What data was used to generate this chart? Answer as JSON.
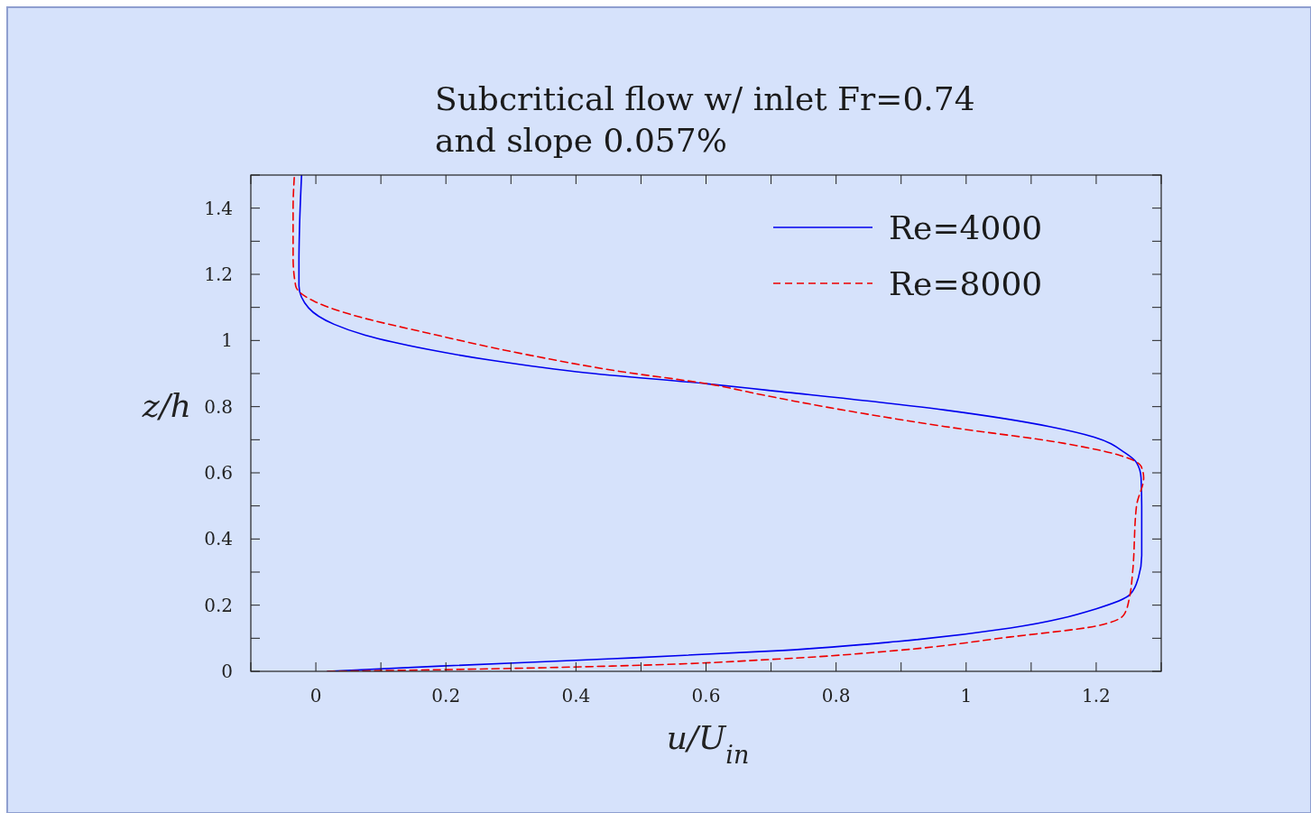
{
  "chart_data": {
    "type": "line",
    "title": "Subcritical flow w/ inlet Fr=0.74\nand slope 0.057%",
    "xlabel": "u/U$_{in}$",
    "ylabel": "z/h",
    "xlim": [
      -0.1,
      1.3
    ],
    "ylim": [
      0,
      1.5
    ],
    "xticks": [
      {
        "value": -0.1,
        "label": null
      },
      0,
      {
        "value": 0.1,
        "label": null
      },
      0.2,
      {
        "value": 0.3,
        "label": null
      },
      0.4,
      {
        "value": 0.5,
        "label": null
      },
      0.6,
      {
        "value": 0.7,
        "label": null
      },
      0.8,
      {
        "value": 0.9,
        "label": null
      },
      1,
      {
        "value": 1.1,
        "label": null
      },
      1.2,
      {
        "value": 1.3,
        "label": null
      }
    ],
    "yticks": [
      0,
      {
        "value": 0.1,
        "label": null
      },
      0.2,
      {
        "value": 0.3,
        "label": null
      },
      0.4,
      {
        "value": 0.5,
        "label": null
      },
      0.6,
      {
        "value": 0.7,
        "label": null
      },
      0.8,
      {
        "value": 0.9,
        "label": null
      },
      1,
      {
        "value": 1.1,
        "label": null
      },
      1.2,
      {
        "value": 1.3,
        "label": null
      },
      1.4,
      {
        "value": 1.5,
        "label": null
      }
    ],
    "grid": false,
    "legend": "top right",
    "marker": "none",
    "series": [
      {
        "name": "Re=4000",
        "color": "#0000ee",
        "line_style": "solid",
        "x": [
          0.018,
          0.193,
          0.456,
          0.718,
          0.893,
          1.068,
          1.2,
          1.252,
          1.265,
          1.27,
          1.27,
          1.269,
          1.262,
          1.244,
          1.197,
          1.128,
          0.967,
          0.693,
          0.602,
          0.417,
          0.27,
          0.173,
          0.076,
          0.028,
          -0.011,
          -0.026,
          -0.026,
          -0.025,
          -0.022
        ],
        "values": [
          0,
          0.016,
          0.038,
          0.063,
          0.09,
          0.131,
          0.189,
          0.232,
          0.284,
          0.35,
          0.5,
          0.585,
          0.631,
          0.661,
          0.708,
          0.74,
          0.79,
          0.85,
          0.869,
          0.902,
          0.94,
          0.973,
          1.016,
          1.049,
          1.098,
          1.165,
          1.24,
          1.35,
          1.5
        ]
      },
      {
        "name": "Re=8000",
        "color": "#ee0000",
        "line_style": "dashed",
        "x": [
          0.018,
          0.193,
          0.456,
          0.718,
          0.893,
          1.068,
          1.2,
          1.243,
          1.252,
          1.256,
          1.262,
          1.273,
          1.269,
          1.244,
          1.151,
          0.967,
          0.735,
          0.693,
          0.602,
          0.466,
          0.32,
          0.173,
          0.053,
          -0.001,
          -0.031,
          -0.035,
          -0.035,
          -0.033
        ],
        "values": [
          0,
          0.005,
          0.016,
          0.038,
          0.063,
          0.104,
          0.137,
          0.172,
          0.232,
          0.3,
          0.5,
          0.585,
          0.62,
          0.648,
          0.689,
          0.74,
          0.817,
          0.833,
          0.869,
          0.907,
          0.959,
          1.022,
          1.079,
          1.117,
          1.165,
          1.25,
          1.4,
          1.5
        ]
      }
    ]
  }
}
